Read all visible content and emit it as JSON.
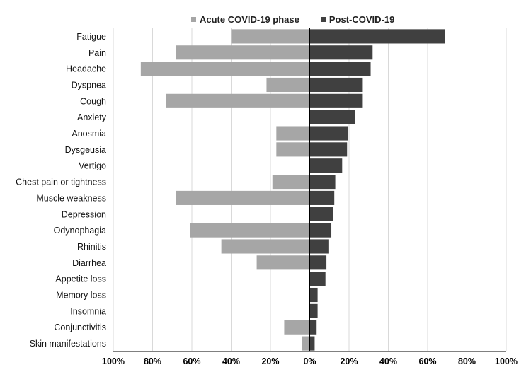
{
  "chart_data": {
    "type": "bar",
    "orientation": "horizontal",
    "layout": "diverging",
    "categories": [
      "Fatigue",
      "Pain",
      "Headache",
      "Dyspnea",
      "Cough",
      "Anxiety",
      "Anosmia",
      "Dysgeusia",
      "Vertigo",
      "Chest pain or tightness",
      "Muscle weakness",
      "Depression",
      "Odynophagia",
      "Rhinitis",
      "Diarrhea",
      "Appetite loss",
      "Memory loss",
      "Insomnia",
      "Conjunctivitis",
      "Skin manifestations"
    ],
    "series": [
      {
        "name": "Acute COVID-19 phase",
        "side": "left",
        "color": "#a6a6a6",
        "values": [
          40,
          68,
          86,
          22,
          73,
          null,
          17,
          17,
          null,
          19,
          68,
          null,
          61,
          45,
          27,
          null,
          null,
          null,
          13,
          4
        ]
      },
      {
        "name": "Post-COVID-19",
        "side": "right",
        "color": "#404040",
        "values": [
          69,
          32,
          31,
          27,
          27,
          23,
          19.5,
          19,
          16.5,
          13,
          12.5,
          12,
          11,
          9.5,
          8.5,
          8,
          4,
          4,
          3.5,
          2.5
        ]
      }
    ],
    "xlim": [
      -100,
      100
    ],
    "xticks": [
      -100,
      -80,
      -60,
      -40,
      -20,
      0,
      20,
      40,
      60,
      80,
      100
    ],
    "xtick_labels": [
      "100%",
      "80%",
      "60%",
      "40%",
      "20%",
      "0%",
      "20%",
      "40%",
      "60%",
      "80%",
      "100%"
    ],
    "legend_position": "top",
    "grid": {
      "vertical": true,
      "horizontal": false
    }
  }
}
